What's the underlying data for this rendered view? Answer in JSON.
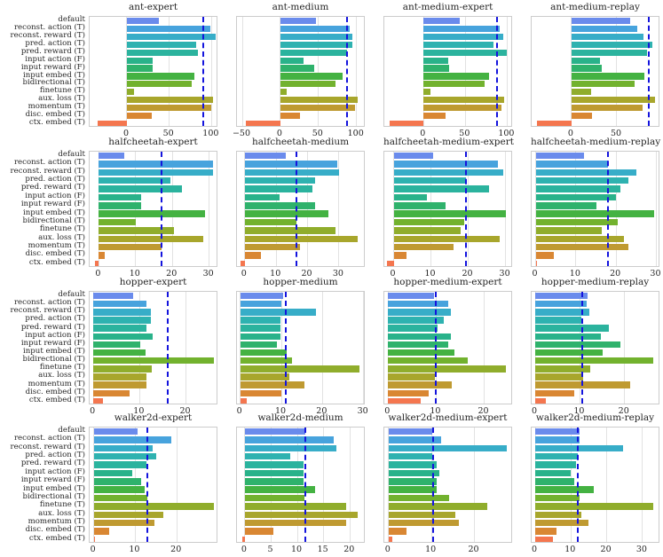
{
  "figure_title": "",
  "chart_data": {
    "type": "bar",
    "orientation": "horizontal",
    "grid": "vertical-light-gray",
    "legend": "none",
    "categories": [
      "default",
      "reconst. action (T)",
      "reconst. reward (T)",
      "pred. action (T)",
      "pred. reward (T)",
      "input action (F)",
      "input reward (F)",
      "input embed (T)",
      "bidirectional (T)",
      "finetune (T)",
      "aux. loss (T)",
      "momentum (T)",
      "disc. embed (T)",
      "ctx. embed (T)"
    ],
    "palette": [
      "#6a8bec",
      "#47a3dd",
      "#37adc8",
      "#2eb2b0",
      "#2bb39e",
      "#29b28a",
      "#2fb26c",
      "#44b242",
      "#72b22e",
      "#90ad2c",
      "#a8a62c",
      "#bf9a31",
      "#d98733",
      "#f4764f"
    ],
    "ref_line_color": "#1414dd",
    "charts": [
      {
        "title": "ant-expert",
        "xlim": [
          -44,
          108
        ],
        "xticks": [
          0,
          50,
          100
        ],
        "ref_line": 90,
        "values": [
          38,
          99,
          105,
          82,
          84,
          30,
          30,
          80,
          77,
          8,
          102,
          100,
          29,
          -35
        ]
      },
      {
        "title": "ant-medium",
        "xlim": [
          -57,
          112
        ],
        "xticks": [
          -50,
          0,
          50,
          100
        ],
        "ref_line": 87,
        "values": [
          47,
          91,
          95,
          95,
          87,
          30,
          44,
          82,
          72,
          8,
          101,
          98,
          26,
          -45
        ]
      },
      {
        "title": "ant-medium-expert",
        "xlim": [
          -47,
          107
        ],
        "xticks": [
          0,
          50,
          100
        ],
        "ref_line": 88,
        "values": [
          43,
          91,
          95,
          84,
          100,
          30,
          31,
          78,
          73,
          8,
          96,
          93,
          26,
          -41
        ]
      },
      {
        "title": "ant-medium-replay",
        "xlim": [
          -44,
          98
        ],
        "xticks": [
          0,
          50
        ],
        "ref_line": 85,
        "values": [
          65,
          73,
          79,
          89,
          83,
          31,
          33,
          80,
          70,
          22,
          92,
          78,
          23,
          -38
        ]
      },
      {
        "title": "halfcheetah-expert",
        "xlim": [
          -2.5,
          32.5
        ],
        "xticks": [
          0,
          10,
          20,
          30
        ],
        "ref_line": 17,
        "values": [
          7,
          31,
          31,
          19.5,
          22.5,
          11.5,
          11.5,
          29,
          10,
          20.5,
          28.5,
          17,
          1.5,
          -1
        ]
      },
      {
        "title": "halfcheetah-medium",
        "xlim": [
          -2.5,
          38.5
        ],
        "xticks": [
          0,
          10,
          20,
          30
        ],
        "ref_line": 16.5,
        "values": [
          13,
          29.5,
          30,
          22.5,
          21.5,
          11,
          22.5,
          26.5,
          16.5,
          29,
          36,
          17.5,
          5,
          -1.5
        ]
      },
      {
        "title": "halfcheetah-medium-expert",
        "xlim": [
          -2.5,
          32
        ],
        "xticks": [
          0,
          10,
          20,
          30
        ],
        "ref_line": 19.5,
        "values": [
          10.5,
          28,
          29.5,
          19.5,
          25.5,
          9,
          14,
          30,
          19,
          18,
          28.5,
          16,
          3.5,
          -1.8
        ]
      },
      {
        "title": "halfcheetah-medium-replay",
        "xlim": [
          -1,
          31
        ],
        "xticks": [
          0,
          10,
          20,
          30
        ],
        "ref_line": 18,
        "values": [
          12,
          18,
          25,
          23,
          21,
          20,
          15,
          29.5,
          20.5,
          16.5,
          22,
          23,
          4.5,
          0.4
        ]
      },
      {
        "title": "hopper-expert",
        "xlim": [
          -0.8,
          27
        ],
        "xticks": [
          0,
          10,
          20
        ],
        "ref_line": 16,
        "values": [
          8.5,
          11.5,
          12.5,
          12.5,
          11.5,
          12.8,
          10.2,
          11.2,
          26,
          12.7,
          11.5,
          11.5,
          7.8,
          2
        ]
      },
      {
        "title": "hopper-medium",
        "xlim": [
          -0.8,
          30.5
        ],
        "xticks": [
          0,
          10,
          20,
          30
        ],
        "ref_line": 11,
        "values": [
          10.5,
          10,
          18.5,
          9.8,
          9.8,
          9.7,
          9,
          11.3,
          12.5,
          29,
          12,
          15.5,
          10,
          1.5
        ]
      },
      {
        "title": "hopper-medium-expert",
        "xlim": [
          -0.8,
          26
        ],
        "xticks": [
          0,
          10,
          20
        ],
        "ref_line": 10,
        "values": [
          9.5,
          12.5,
          13,
          11.5,
          10.2,
          13,
          12.5,
          13.8,
          16.5,
          24.5,
          9.8,
          13.3,
          8.5,
          6.8
        ]
      },
      {
        "title": "hopper-medium-replay",
        "xlim": [
          -0.8,
          28
        ],
        "xticks": [
          0,
          10,
          20
        ],
        "ref_line": 10.5,
        "values": [
          11.8,
          11.6,
          12.2,
          10.4,
          16.5,
          14.7,
          19,
          15,
          26.5,
          12.4,
          10.8,
          21.2,
          8.7,
          2.3
        ]
      },
      {
        "title": "walker2d-expert",
        "xlim": [
          -1,
          30
        ],
        "xticks": [
          0,
          10,
          20
        ],
        "ref_line": 13,
        "values": [
          10.5,
          18.7,
          14.2,
          15,
          12.7,
          9.2,
          11.3,
          12.2,
          12.8,
          29,
          16.7,
          14.7,
          3.7,
          0.3
        ]
      },
      {
        "title": "walker2d-medium",
        "xlim": [
          -1.5,
          23
        ],
        "xticks": [
          0,
          5,
          10,
          15,
          20
        ],
        "ref_line": 11.5,
        "values": [
          11.5,
          17,
          17.5,
          8.7,
          11.2,
          11.2,
          11.2,
          13.3,
          11.3,
          19.3,
          21.5,
          19.2,
          5.5,
          -0.5
        ]
      },
      {
        "title": "walker2d-medium-expert",
        "xlim": [
          -1,
          29
        ],
        "xticks": [
          0,
          10,
          20
        ],
        "ref_line": 10.3,
        "values": [
          10.2,
          12.2,
          27.5,
          10.2,
          11.3,
          11.8,
          11.3,
          11.3,
          14.2,
          23,
          15.5,
          16.3,
          4.2,
          0.8
        ]
      },
      {
        "title": "walker2d-medium-replay",
        "xlim": [
          -1,
          35
        ],
        "xticks": [
          0,
          10,
          20,
          30
        ],
        "ref_line": 12,
        "values": [
          12.5,
          12.5,
          24.5,
          12,
          11.5,
          10,
          10.8,
          16.5,
          12.3,
          33,
          13,
          14.8,
          6,
          5
        ]
      }
    ]
  }
}
